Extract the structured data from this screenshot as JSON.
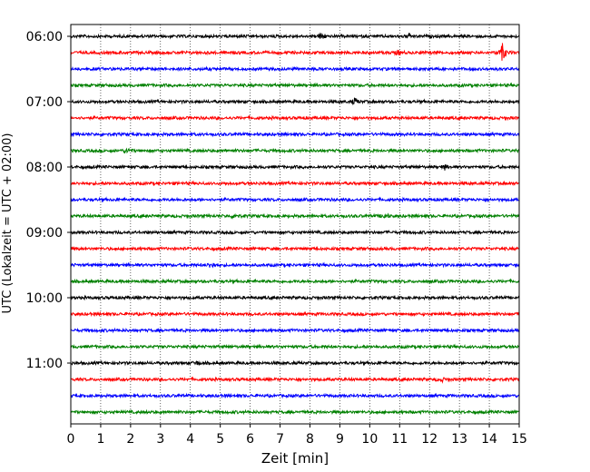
{
  "chart_data": {
    "type": "line",
    "title": "",
    "xlabel": "Zeit  [min]",
    "ylabel": "UTC (Lokalzeit = UTC + 02:00)",
    "xlim": [
      0,
      15
    ],
    "x_ticks": [
      "0",
      "1",
      "2",
      "3",
      "4",
      "5",
      "6",
      "7",
      "8",
      "9",
      "10",
      "11",
      "12",
      "13",
      "14",
      "15"
    ],
    "y_ticks": [
      "06:00",
      "07:00",
      "08:00",
      "09:00",
      "10:00",
      "11:00"
    ],
    "grid": "vertical dotted lines at each minute",
    "trace_colors": [
      "#000000",
      "#ff0000",
      "#0000ff",
      "#008000"
    ],
    "traces_start": "06:00",
    "trace_interval_min": 15,
    "trace_count": 24,
    "events": [
      {
        "trace": 0,
        "minute": 8.4,
        "amplitude": 4.5
      },
      {
        "trace": 0,
        "minute": 11.3,
        "amplitude": 2.2
      },
      {
        "trace": 1,
        "minute": 14.45,
        "amplitude": 11
      },
      {
        "trace": 1,
        "minute": 10.95,
        "amplitude": 2.5
      },
      {
        "trace": 4,
        "minute": 9.5,
        "amplitude": 3.5
      },
      {
        "trace": 7,
        "minute": 1.9,
        "amplitude": 3
      },
      {
        "trace": 8,
        "minute": 12.5,
        "amplitude": 2.5
      },
      {
        "trace": 11,
        "minute": 5.5,
        "amplitude": 3
      },
      {
        "trace": 11,
        "minute": 10.5,
        "amplitude": 2.8
      },
      {
        "trace": 14,
        "minute": 4.7,
        "amplitude": 4
      },
      {
        "trace": 20,
        "minute": 4.2,
        "amplitude": 2
      },
      {
        "trace": 21,
        "minute": 12.4,
        "amplitude": 2
      }
    ]
  }
}
